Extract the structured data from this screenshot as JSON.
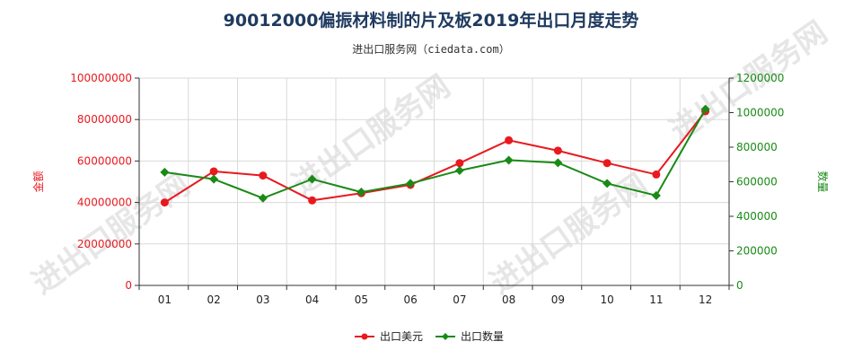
{
  "chart_data": {
    "type": "line",
    "title": "90012000偏振材料制的片及板2019年出口月度走势",
    "subtitle": "进出口服务网（ciedata.com）",
    "categories": [
      "01",
      "02",
      "03",
      "04",
      "05",
      "06",
      "07",
      "08",
      "09",
      "10",
      "11",
      "12"
    ],
    "y_left": {
      "label": "金额",
      "ticks": [
        "0",
        "20000000",
        "40000000",
        "60000000",
        "80000000",
        "100000000"
      ],
      "range": [
        0,
        100000000
      ]
    },
    "y_right": {
      "label": "数量",
      "ticks": [
        "0",
        "200000",
        "400000",
        "600000",
        "800000",
        "1000000",
        "1200000"
      ],
      "range": [
        0,
        1200000
      ]
    },
    "series": [
      {
        "name": "出口美元",
        "axis": "left",
        "color": "#e8191f",
        "values": [
          40000000,
          55000000,
          53000000,
          41000000,
          44500000,
          48500000,
          59000000,
          70000000,
          65000000,
          59000000,
          53500000,
          84000000
        ]
      },
      {
        "name": "出口数量",
        "axis": "right",
        "color": "#1a8a16",
        "values": [
          655000,
          615000,
          505000,
          615000,
          540000,
          590000,
          665000,
          725000,
          710000,
          590000,
          520000,
          1020000
        ]
      }
    ],
    "legend_position": "bottom-center",
    "grid": true
  },
  "watermark": "进出口服务网"
}
